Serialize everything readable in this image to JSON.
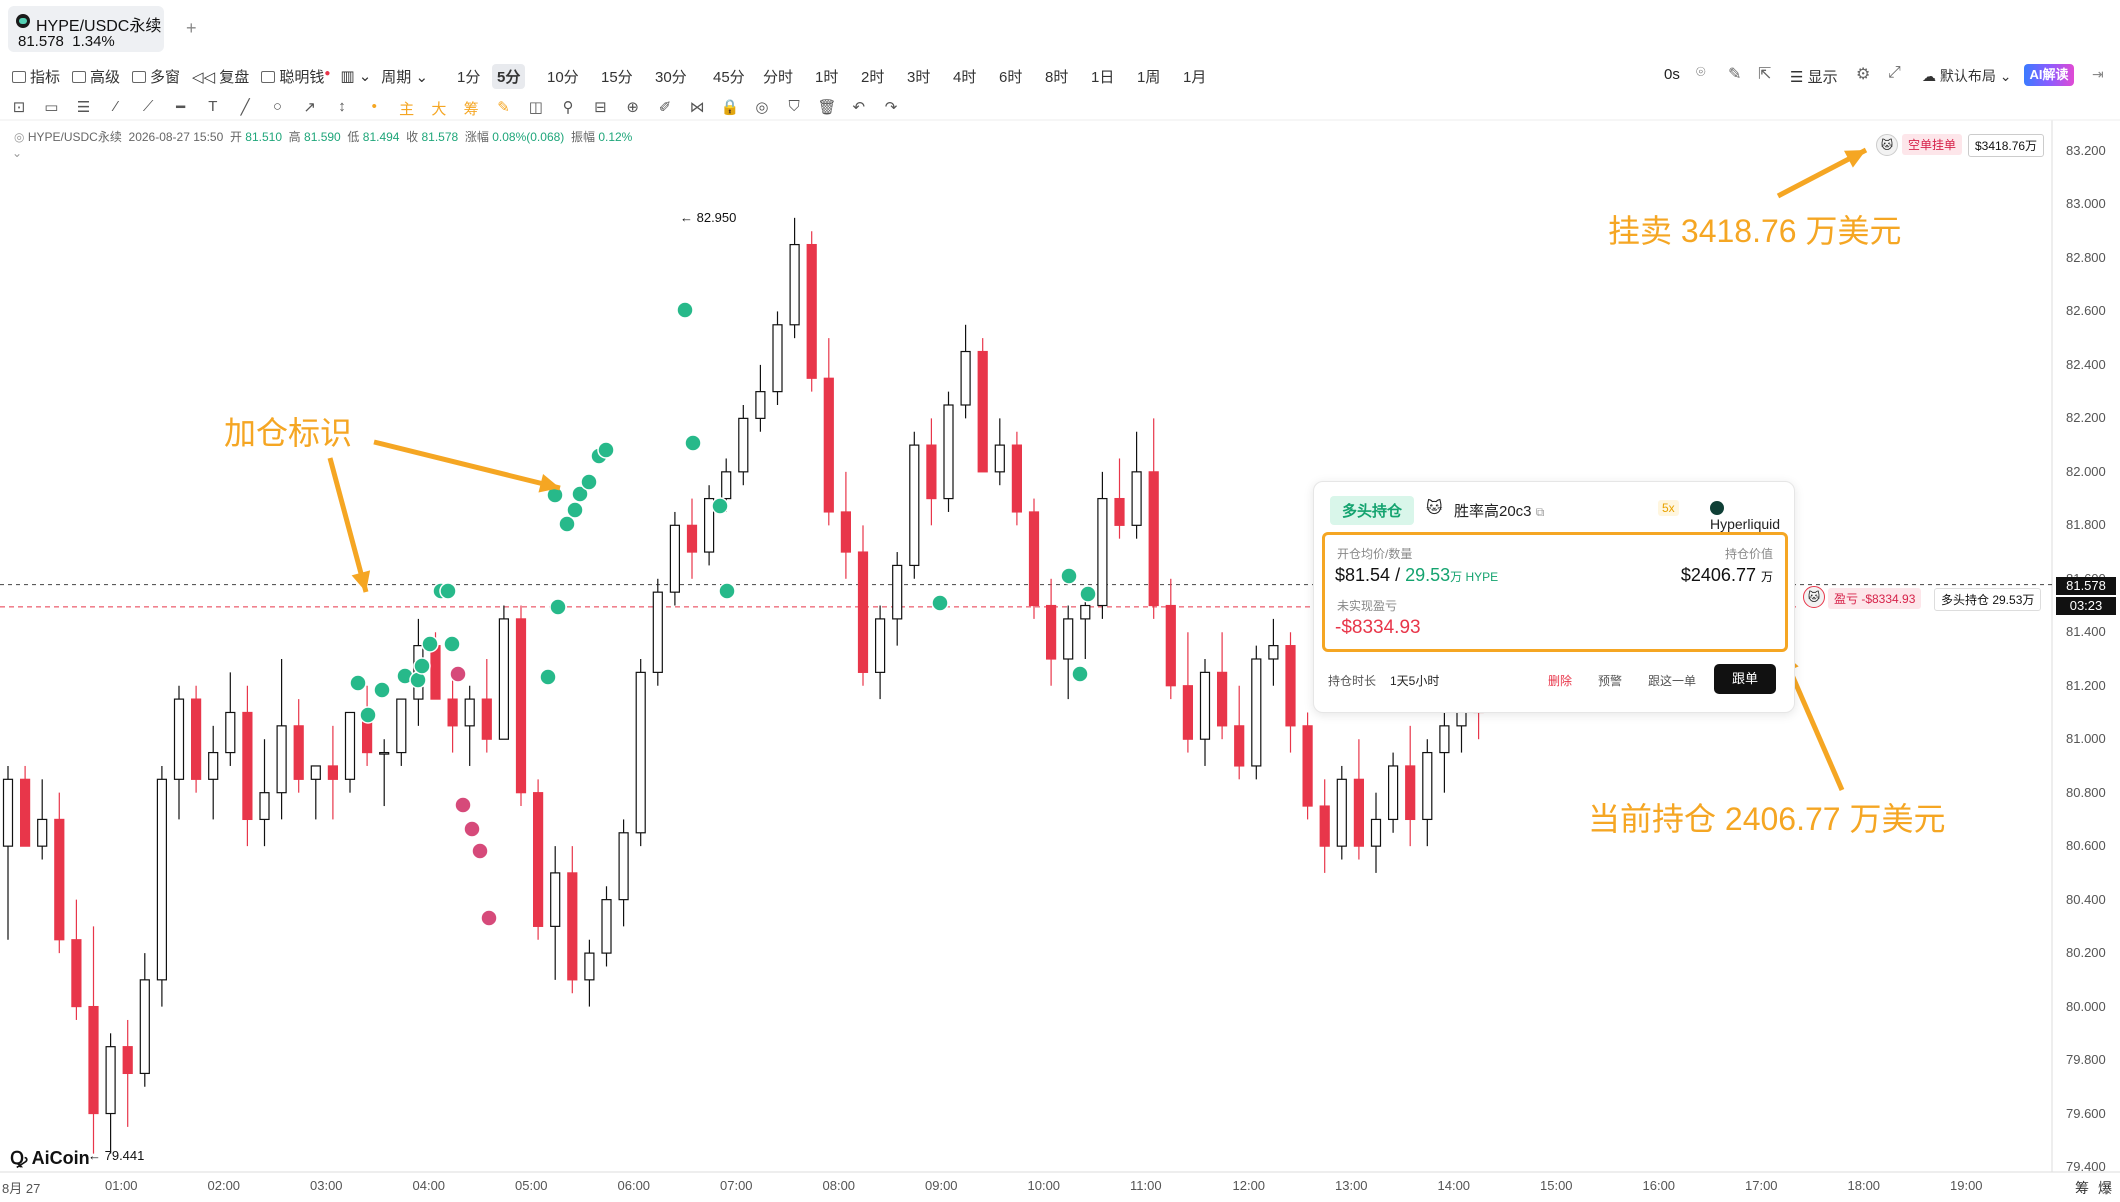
{
  "tab": {
    "symbol": "HYPE/USDC永续",
    "price": "81.578",
    "change": "1.34%",
    "add": "+"
  },
  "toolbar": {
    "indicators": "指标",
    "advanced": "高级",
    "multiwin": "多窗",
    "replay": "复盘",
    "smart_money": "聪明钱",
    "period": "周期",
    "periods": [
      "1分",
      "5分",
      "10分",
      "15分",
      "30分",
      "45分",
      "分时",
      "1时",
      "2时",
      "3时",
      "4时",
      "6时",
      "8时",
      "1日",
      "1周",
      "1月"
    ],
    "active_period": "5分",
    "countdown": "0s",
    "display": "显示",
    "layout": "默认布局",
    "ai": "AI解读"
  },
  "drawing_tools": [
    "⊡",
    "▭",
    "☰",
    "⁄",
    "⟋",
    "━",
    "T",
    "╱",
    "○",
    "↗",
    "↕",
    "•",
    "主",
    "大",
    "筹",
    "✎",
    "◫",
    "⚲",
    "⊟",
    "⊕",
    "✐",
    "⋈",
    "🔒",
    "◎",
    "⛉",
    "🗑",
    "↶",
    "↷"
  ],
  "info_bar": {
    "symbol": "HYPE/USDC永续",
    "datetime": "2026-08-27 15:50",
    "open_label": "开",
    "open": "81.510",
    "high_label": "高",
    "high": "81.590",
    "low_label": "低",
    "low": "81.494",
    "close_label": "收",
    "close": "81.578",
    "change_label": "涨幅",
    "change": "0.08%(0.068)",
    "amp_label": "振幅",
    "amp": "0.12%"
  },
  "price_axis": [
    "83.200",
    "83.000",
    "82.800",
    "82.600",
    "82.400",
    "82.200",
    "82.000",
    "81.800",
    "81.600",
    "81.400",
    "81.200",
    "81.000",
    "80.800",
    "80.600",
    "80.400",
    "80.200",
    "80.000",
    "79.800",
    "79.600",
    "79.400"
  ],
  "current_price": {
    "value": "81.578",
    "countdown": "03:23"
  },
  "time_axis": [
    "8月 27",
    "01:00",
    "02:00",
    "03:00",
    "04:00",
    "05:00",
    "06:00",
    "07:00",
    "08:00",
    "09:00",
    "10:00",
    "11:00",
    "12:00",
    "13:00",
    "14:00",
    "15:00",
    "16:00",
    "17:00",
    "18:00",
    "19:00"
  ],
  "bottom_right": [
    "筹",
    "爆"
  ],
  "chart_data": {
    "type": "candlestick",
    "instrument": "HYPE/USDC永续",
    "interval": "5分",
    "ylim": [
      79.4,
      83.2
    ],
    "candles": [
      [
        80.6,
        80.9,
        80.25,
        80.85
      ],
      [
        80.85,
        80.9,
        80.6,
        80.6
      ],
      [
        80.6,
        80.85,
        80.55,
        80.7
      ],
      [
        80.7,
        80.8,
        80.2,
        80.25
      ],
      [
        80.25,
        80.4,
        79.95,
        80.0
      ],
      [
        80.0,
        80.3,
        79.45,
        79.6
      ],
      [
        79.6,
        79.9,
        79.45,
        79.85
      ],
      [
        79.85,
        79.95,
        79.55,
        79.75
      ],
      [
        79.75,
        80.2,
        79.7,
        80.1
      ],
      [
        80.1,
        80.9,
        80.0,
        80.85
      ],
      [
        80.85,
        81.2,
        80.7,
        81.15
      ],
      [
        81.15,
        81.2,
        80.8,
        80.85
      ],
      [
        80.85,
        81.05,
        80.7,
        80.95
      ],
      [
        80.95,
        81.25,
        80.9,
        81.1
      ],
      [
        81.1,
        81.2,
        80.6,
        80.7
      ],
      [
        80.7,
        81.0,
        80.6,
        80.8
      ],
      [
        80.8,
        81.3,
        80.7,
        81.05
      ],
      [
        81.05,
        81.15,
        80.8,
        80.85
      ],
      [
        80.85,
        80.9,
        80.7,
        80.9
      ],
      [
        80.9,
        81.05,
        80.7,
        80.85
      ],
      [
        80.85,
        81.1,
        80.8,
        81.1
      ],
      [
        81.1,
        81.2,
        80.9,
        80.95
      ],
      [
        80.95,
        81.0,
        80.75,
        80.95
      ],
      [
        80.95,
        81.15,
        80.9,
        81.15
      ],
      [
        81.15,
        81.45,
        81.05,
        81.35
      ],
      [
        81.35,
        81.4,
        81.15,
        81.15
      ],
      [
        81.15,
        81.25,
        80.95,
        81.05
      ],
      [
        81.05,
        81.2,
        80.9,
        81.15
      ],
      [
        81.15,
        81.3,
        80.95,
        81.0
      ],
      [
        81.0,
        81.5,
        81.0,
        81.45
      ],
      [
        81.45,
        81.5,
        80.75,
        80.8
      ],
      [
        80.8,
        80.85,
        80.25,
        80.3
      ],
      [
        80.3,
        80.6,
        80.1,
        80.5
      ],
      [
        80.5,
        80.6,
        80.05,
        80.1
      ],
      [
        80.1,
        80.25,
        80.0,
        80.2
      ],
      [
        80.2,
        80.45,
        80.15,
        80.4
      ],
      [
        80.4,
        80.7,
        80.3,
        80.65
      ],
      [
        80.65,
        81.3,
        80.6,
        81.25
      ],
      [
        81.25,
        81.6,
        81.2,
        81.55
      ],
      [
        81.55,
        81.85,
        81.5,
        81.8
      ],
      [
        81.8,
        81.9,
        81.6,
        81.7
      ],
      [
        81.7,
        81.95,
        81.65,
        81.9
      ],
      [
        81.9,
        82.05,
        81.85,
        82.0
      ],
      [
        82.0,
        82.25,
        81.95,
        82.2
      ],
      [
        82.2,
        82.4,
        82.15,
        82.3
      ],
      [
        82.3,
        82.6,
        82.25,
        82.55
      ],
      [
        82.55,
        82.95,
        82.5,
        82.85
      ],
      [
        82.85,
        82.9,
        82.3,
        82.35
      ],
      [
        82.35,
        82.5,
        81.8,
        81.85
      ],
      [
        81.85,
        82.0,
        81.6,
        81.7
      ],
      [
        81.7,
        81.8,
        81.2,
        81.25
      ],
      [
        81.25,
        81.5,
        81.15,
        81.45
      ],
      [
        81.45,
        81.7,
        81.35,
        81.65
      ],
      [
        81.65,
        82.15,
        81.6,
        82.1
      ],
      [
        82.1,
        82.2,
        81.8,
        81.9
      ],
      [
        81.9,
        82.3,
        81.85,
        82.25
      ],
      [
        82.25,
        82.55,
        82.2,
        82.45
      ],
      [
        82.45,
        82.5,
        82.0,
        82.0
      ],
      [
        82.0,
        82.2,
        81.95,
        82.1
      ],
      [
        82.1,
        82.15,
        81.8,
        81.85
      ],
      [
        81.85,
        81.9,
        81.45,
        81.5
      ],
      [
        81.5,
        81.6,
        81.2,
        81.3
      ],
      [
        81.3,
        81.5,
        81.15,
        81.45
      ],
      [
        81.45,
        81.55,
        81.3,
        81.5
      ],
      [
        81.5,
        82.0,
        81.45,
        81.9
      ],
      [
        81.9,
        82.05,
        81.75,
        81.8
      ],
      [
        81.8,
        82.15,
        81.75,
        82.0
      ],
      [
        82.0,
        82.2,
        81.45,
        81.5
      ],
      [
        81.5,
        81.6,
        81.15,
        81.2
      ],
      [
        81.2,
        81.4,
        80.95,
        81.0
      ],
      [
        81.0,
        81.3,
        80.9,
        81.25
      ],
      [
        81.25,
        81.4,
        81.0,
        81.05
      ],
      [
        81.05,
        81.2,
        80.85,
        80.9
      ],
      [
        80.9,
        81.35,
        80.85,
        81.3
      ],
      [
        81.3,
        81.45,
        81.2,
        81.35
      ],
      [
        81.35,
        81.4,
        80.95,
        81.05
      ],
      [
        81.05,
        81.1,
        80.7,
        80.75
      ],
      [
        80.75,
        80.85,
        80.5,
        80.6
      ],
      [
        80.6,
        80.9,
        80.55,
        80.85
      ],
      [
        80.85,
        81.0,
        80.55,
        80.6
      ],
      [
        80.6,
        80.8,
        80.5,
        80.7
      ],
      [
        80.7,
        80.95,
        80.65,
        80.9
      ],
      [
        80.9,
        81.05,
        80.6,
        80.7
      ],
      [
        80.7,
        81.0,
        80.6,
        80.95
      ],
      [
        80.95,
        81.1,
        80.8,
        81.05
      ],
      [
        81.05,
        81.2,
        80.95,
        81.15
      ],
      [
        81.15,
        81.3,
        81.0,
        81.1
      ]
    ],
    "markers": {
      "high": "82.950",
      "low": "79.441"
    },
    "current_price_line": 81.578,
    "position_line": 81.54
  },
  "top_order": {
    "label": "空单挂单",
    "value": "$3418.76万"
  },
  "pos_tag": {
    "pnl": "盈亏 -$8334.93",
    "side": "多头持仓 29.53万"
  },
  "card": {
    "badge": "多头持仓",
    "trader": "胜率高20c3",
    "leverage": "5x",
    "exchange": "Hyperliquid",
    "entry_label": "开仓均价/数量",
    "entry_price": "$81.54",
    "sep": " / ",
    "qty": "29.53",
    "qty_unit": "万 HYPE",
    "value_label": "持仓价值",
    "value": "$2406.77",
    "value_unit": "万",
    "pnl_label": "未实现盈亏",
    "pnl": "-$8334.93",
    "dur_label": "持仓时长",
    "dur": "1天5小时",
    "delete": "删除",
    "alert": "预警",
    "follow_one": "跟这一单",
    "follow": "跟单"
  },
  "annotations": {
    "sell": "挂卖 3418.76 万美元",
    "add": "加仓标识",
    "hold": "当前持仓 2406.77 万美元"
  },
  "logo": "AiCoin",
  "colors": {
    "up": "#e8364a",
    "down": "#111111",
    "accent": "#f5a623",
    "green": "#14a36f"
  }
}
